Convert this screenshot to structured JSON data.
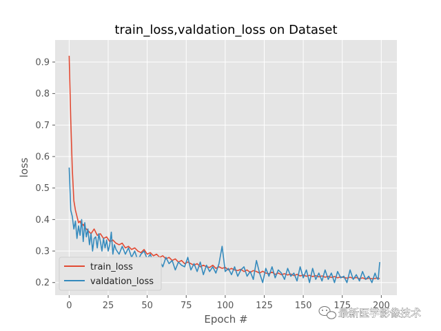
{
  "chart_data": {
    "type": "line",
    "title": "train_loss,valdation_loss on Dataset",
    "xlabel": "Epoch #",
    "ylabel": "loss",
    "xlim": [
      -9,
      210
    ],
    "ylim": [
      0.16,
      0.97
    ],
    "xticks": [
      0,
      25,
      50,
      75,
      100,
      125,
      150,
      175,
      200
    ],
    "yticks": [
      0.2,
      0.3,
      0.4,
      0.5,
      0.6,
      0.7,
      0.8,
      0.9
    ],
    "grid": true,
    "legend_position": "lower-left",
    "series": [
      {
        "name": "train_loss",
        "color": "#e24a33",
        "x": [
          0,
          1,
          2,
          3,
          4,
          5,
          6,
          7,
          8,
          9,
          10,
          12,
          14,
          16,
          18,
          20,
          22,
          24,
          26,
          28,
          30,
          32,
          34,
          36,
          38,
          40,
          42,
          44,
          46,
          48,
          50,
          52,
          54,
          56,
          58,
          60,
          62,
          64,
          66,
          68,
          70,
          72,
          74,
          76,
          78,
          80,
          82,
          84,
          86,
          88,
          90,
          92,
          94,
          96,
          98,
          100,
          102,
          104,
          106,
          108,
          110,
          112,
          114,
          116,
          118,
          120,
          122,
          124,
          126,
          128,
          130,
          132,
          134,
          136,
          138,
          140,
          142,
          144,
          146,
          148,
          150,
          152,
          154,
          156,
          158,
          160,
          162,
          164,
          166,
          168,
          170,
          172,
          174,
          176,
          178,
          180,
          182,
          184,
          186,
          188,
          190,
          192,
          194,
          196,
          198,
          199
        ],
        "y": [
          0.92,
          0.72,
          0.56,
          0.46,
          0.43,
          0.41,
          0.39,
          0.395,
          0.38,
          0.385,
          0.375,
          0.365,
          0.355,
          0.37,
          0.35,
          0.355,
          0.34,
          0.345,
          0.33,
          0.335,
          0.325,
          0.32,
          0.325,
          0.31,
          0.315,
          0.305,
          0.31,
          0.3,
          0.295,
          0.305,
          0.29,
          0.295,
          0.285,
          0.29,
          0.28,
          0.285,
          0.275,
          0.28,
          0.27,
          0.275,
          0.265,
          0.27,
          0.26,
          0.265,
          0.26,
          0.255,
          0.26,
          0.25,
          0.255,
          0.25,
          0.248,
          0.255,
          0.245,
          0.25,
          0.245,
          0.248,
          0.24,
          0.245,
          0.24,
          0.238,
          0.242,
          0.235,
          0.24,
          0.232,
          0.238,
          0.235,
          0.23,
          0.236,
          0.23,
          0.228,
          0.233,
          0.226,
          0.23,
          0.225,
          0.228,
          0.224,
          0.227,
          0.222,
          0.226,
          0.221,
          0.224,
          0.22,
          0.223,
          0.219,
          0.222,
          0.218,
          0.221,
          0.217,
          0.22,
          0.216,
          0.219,
          0.215,
          0.218,
          0.216,
          0.214,
          0.217,
          0.213,
          0.216,
          0.212,
          0.215,
          0.211,
          0.214,
          0.212,
          0.213,
          0.215,
          0.212
        ]
      },
      {
        "name": "valdation_loss",
        "color": "#348abd",
        "x": [
          0,
          1,
          2,
          3,
          4,
          5,
          6,
          7,
          8,
          9,
          10,
          11,
          12,
          13,
          14,
          15,
          16,
          17,
          18,
          19,
          20,
          21,
          22,
          23,
          24,
          25,
          26,
          27,
          28,
          29,
          30,
          32,
          34,
          36,
          38,
          40,
          42,
          44,
          46,
          48,
          50,
          52,
          54,
          56,
          58,
          60,
          62,
          64,
          66,
          68,
          70,
          72,
          74,
          76,
          78,
          80,
          82,
          84,
          86,
          88,
          90,
          92,
          94,
          96,
          98,
          100,
          102,
          104,
          106,
          108,
          110,
          112,
          114,
          116,
          118,
          120,
          122,
          124,
          126,
          128,
          130,
          132,
          134,
          136,
          138,
          140,
          142,
          144,
          146,
          148,
          150,
          152,
          154,
          156,
          158,
          160,
          162,
          164,
          166,
          168,
          170,
          172,
          174,
          176,
          178,
          180,
          182,
          184,
          186,
          188,
          190,
          192,
          194,
          196,
          197,
          198,
          199
        ],
        "y": [
          0.565,
          0.43,
          0.41,
          0.37,
          0.395,
          0.34,
          0.38,
          0.35,
          0.4,
          0.33,
          0.39,
          0.345,
          0.37,
          0.32,
          0.355,
          0.3,
          0.34,
          0.345,
          0.31,
          0.355,
          0.33,
          0.3,
          0.34,
          0.31,
          0.335,
          0.3,
          0.32,
          0.36,
          0.29,
          0.32,
          0.305,
          0.29,
          0.315,
          0.29,
          0.31,
          0.28,
          0.3,
          0.27,
          0.29,
          0.3,
          0.275,
          0.29,
          0.26,
          0.28,
          0.27,
          0.25,
          0.28,
          0.26,
          0.27,
          0.24,
          0.265,
          0.255,
          0.25,
          0.28,
          0.24,
          0.26,
          0.235,
          0.265,
          0.225,
          0.255,
          0.235,
          0.25,
          0.23,
          0.26,
          0.315,
          0.235,
          0.245,
          0.225,
          0.25,
          0.22,
          0.24,
          0.25,
          0.22,
          0.235,
          0.21,
          0.27,
          0.23,
          0.2,
          0.245,
          0.22,
          0.25,
          0.215,
          0.24,
          0.23,
          0.21,
          0.245,
          0.22,
          0.23,
          0.205,
          0.25,
          0.215,
          0.24,
          0.2,
          0.245,
          0.21,
          0.23,
          0.205,
          0.24,
          0.21,
          0.23,
          0.2,
          0.235,
          0.215,
          0.22,
          0.2,
          0.24,
          0.21,
          0.225,
          0.205,
          0.235,
          0.21,
          0.22,
          0.2,
          0.23,
          0.215,
          0.21,
          0.265
        ]
      }
    ]
  },
  "watermark": {
    "text": "最新医学影像技术",
    "icon": "wechat-icon"
  }
}
